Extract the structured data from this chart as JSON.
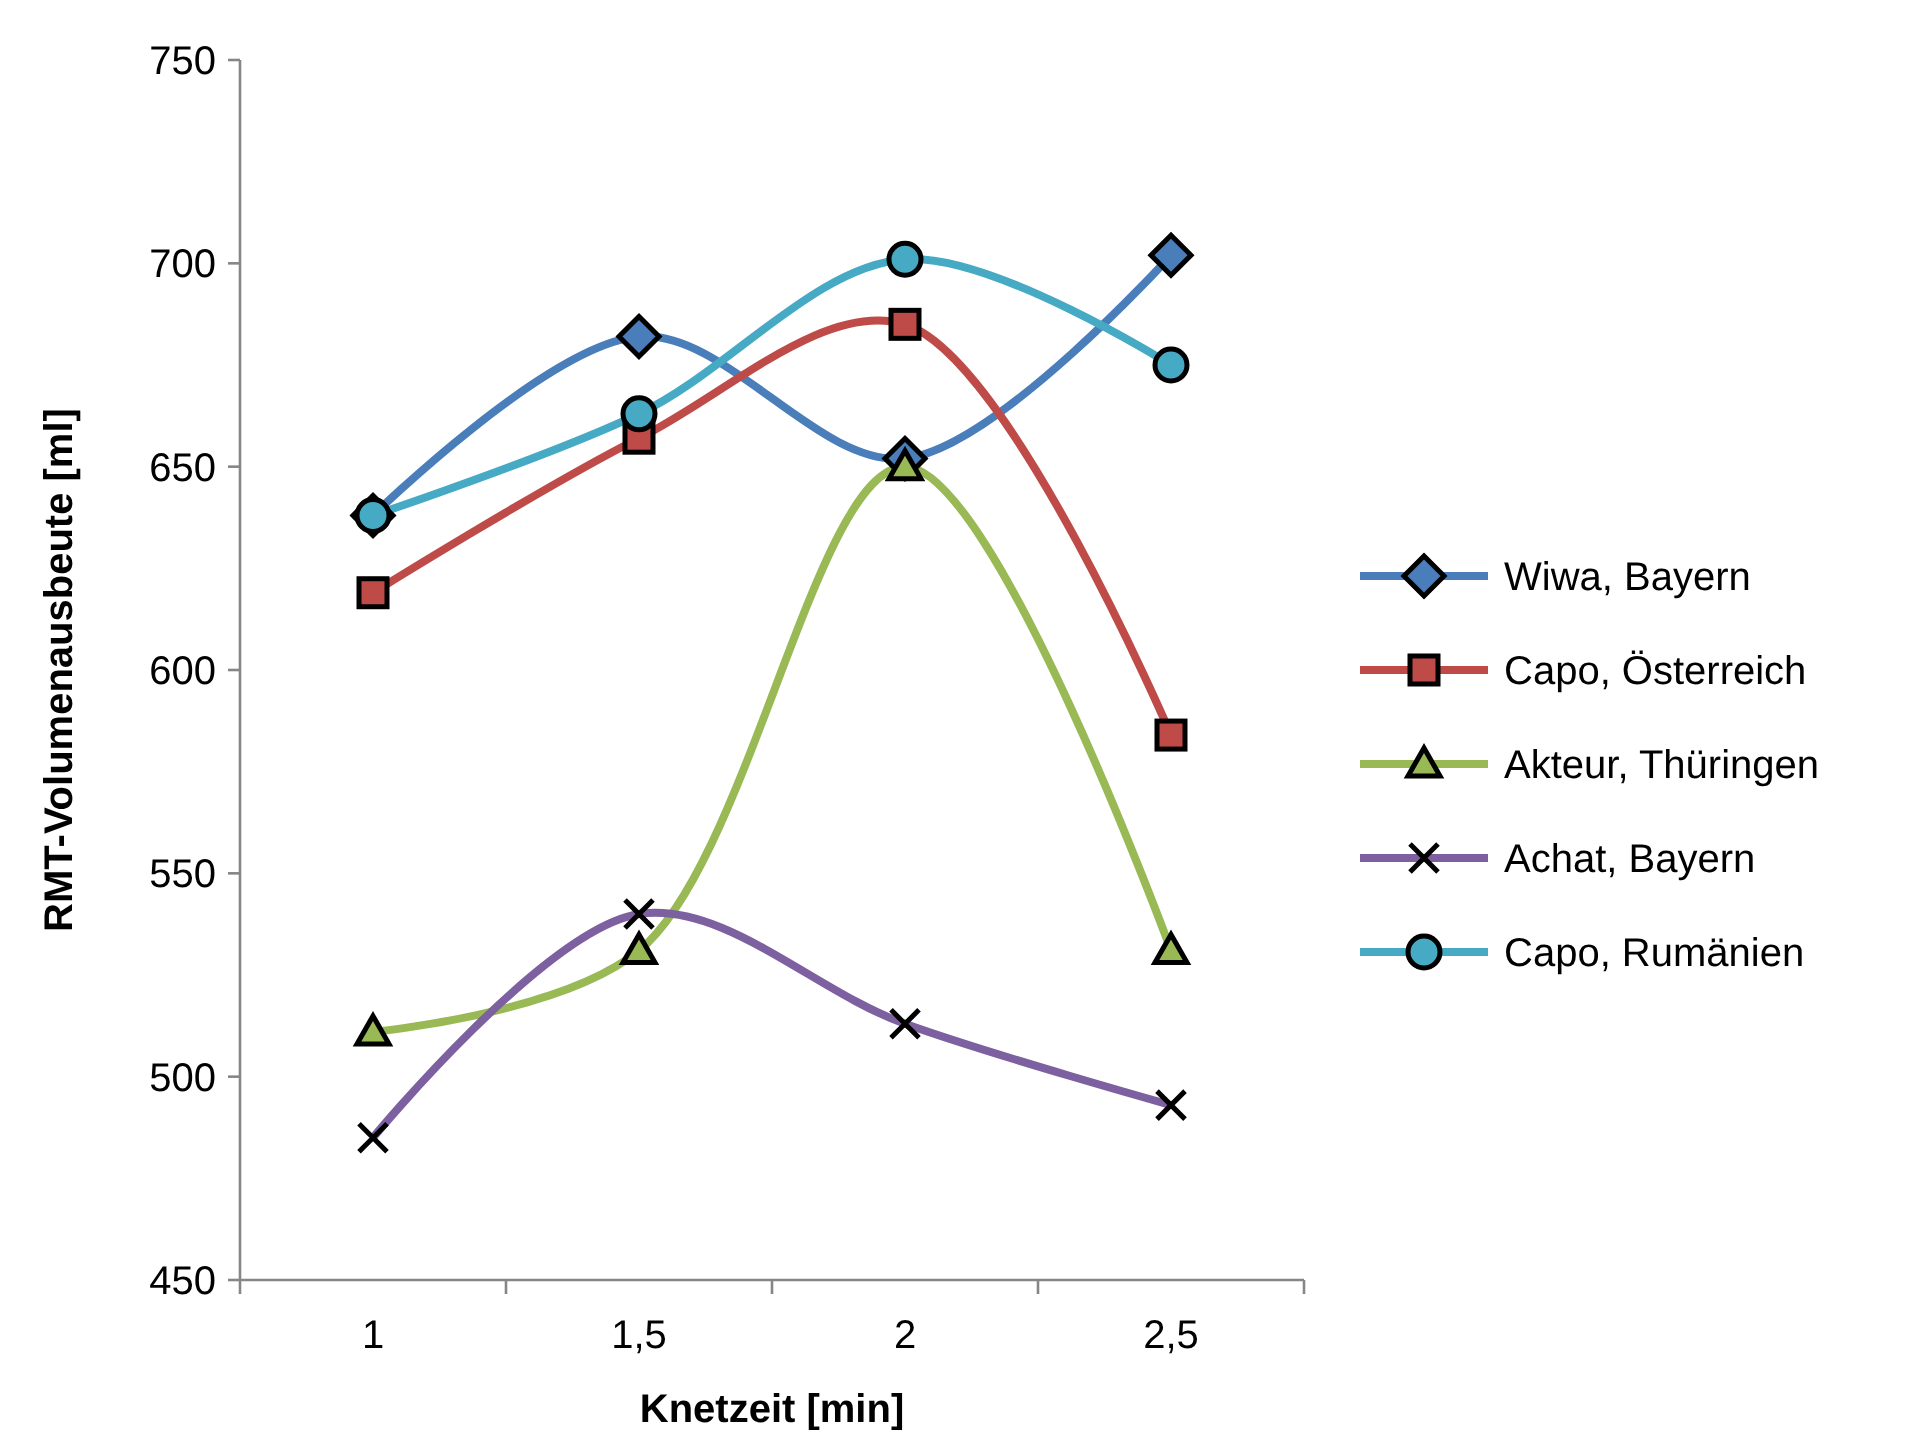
{
  "chart_data": {
    "type": "line",
    "xlabel": "Knetzeit [min]",
    "ylabel": "RMT-Volumenausbeute [ml]",
    "categories": [
      "1",
      "1,5",
      "2",
      "2,5"
    ],
    "ylim": [
      450,
      750
    ],
    "yticks": [
      450,
      500,
      550,
      600,
      650,
      700,
      750
    ],
    "grid": false,
    "legend": "right",
    "line_style": "solid",
    "series": [
      {
        "name": "Wiwa, Bayern",
        "color": "#4a7ebb",
        "marker": "diamond",
        "values": [
          638,
          682,
          652,
          702
        ]
      },
      {
        "name": "Capo, Österreich",
        "color": "#be4b48",
        "marker": "square",
        "values": [
          619,
          657,
          685,
          584
        ]
      },
      {
        "name": "Akteur, Thüringen",
        "color": "#98b954",
        "marker": "triangle",
        "values": [
          511,
          531,
          650,
          531
        ]
      },
      {
        "name": "Achat, Bayern",
        "color": "#7d60a0",
        "marker": "cross",
        "values": [
          485,
          540,
          513,
          493
        ]
      },
      {
        "name": "Capo, Rumänien",
        "color": "#46aac5",
        "marker": "circle",
        "values": [
          638,
          663,
          701,
          675
        ]
      }
    ]
  }
}
